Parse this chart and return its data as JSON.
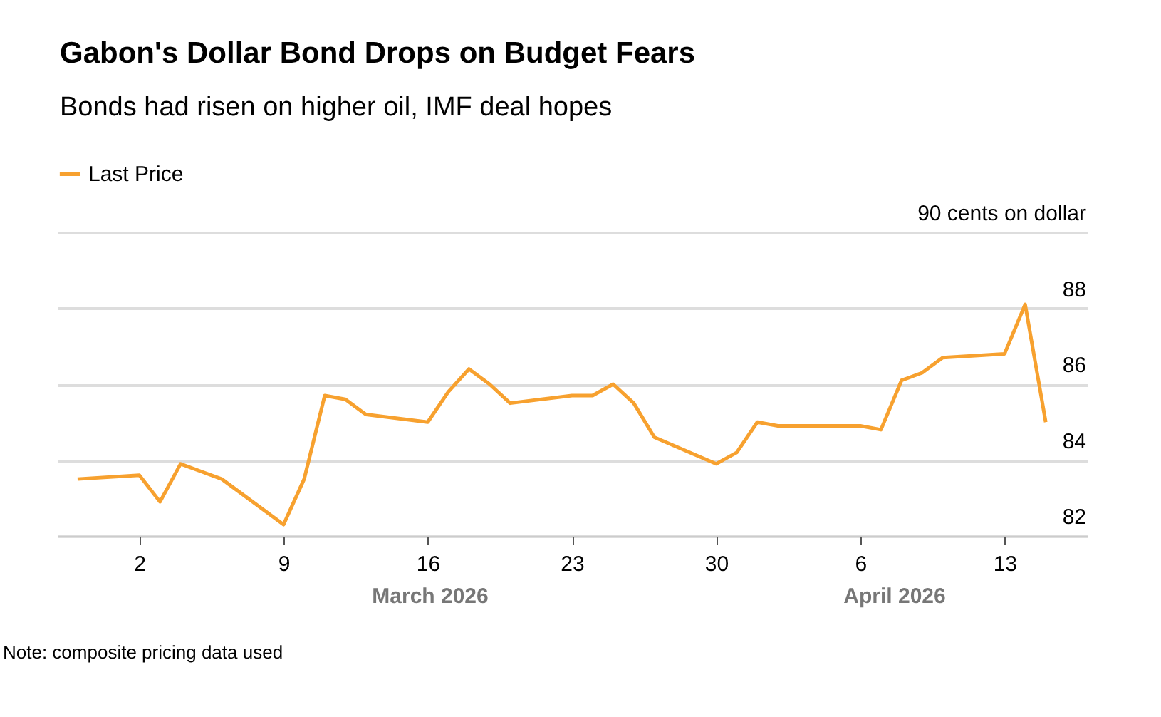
{
  "chart_data": {
    "type": "line",
    "title": "Gabon's Dollar Bond Drops on Budget Fears",
    "subtitle": "Bonds had risen on higher oil, IMF deal hopes",
    "x": [
      "2026-02-27",
      "2026-03-02",
      "2026-03-03",
      "2026-03-04",
      "2026-03-05",
      "2026-03-06",
      "2026-03-09",
      "2026-03-10",
      "2026-03-11",
      "2026-03-12",
      "2026-03-13",
      "2026-03-16",
      "2026-03-17",
      "2026-03-18",
      "2026-03-19",
      "2026-03-20",
      "2026-03-23",
      "2026-03-24",
      "2026-03-25",
      "2026-03-26",
      "2026-03-27",
      "2026-03-30",
      "2026-03-31",
      "2026-04-01",
      "2026-04-02",
      "2026-04-06",
      "2026-04-07",
      "2026-04-08",
      "2026-04-09",
      "2026-04-10",
      "2026-04-13",
      "2026-04-14",
      "2026-04-15"
    ],
    "series": [
      {
        "name": "Last Price",
        "color": "#f7a12f",
        "values": [
          83.5,
          83.6,
          82.9,
          83.9,
          83.7,
          83.5,
          82.3,
          83.5,
          85.7,
          85.6,
          85.2,
          85.0,
          85.8,
          86.4,
          86.0,
          85.5,
          85.7,
          85.7,
          86.0,
          85.5,
          84.6,
          83.9,
          84.2,
          85.0,
          84.9,
          84.9,
          84.8,
          86.1,
          86.3,
          86.7,
          86.8,
          88.1,
          85.0
        ]
      }
    ],
    "xlim": [
      "2026-02-26",
      "2026-04-17"
    ],
    "xticks": [
      {
        "value": "2026-03-02",
        "label": "2"
      },
      {
        "value": "2026-03-09",
        "label": "9"
      },
      {
        "value": "2026-03-16",
        "label": "16"
      },
      {
        "value": "2026-03-23",
        "label": "23"
      },
      {
        "value": "2026-03-30",
        "label": "30"
      },
      {
        "value": "2026-04-06",
        "label": "6"
      },
      {
        "value": "2026-04-13",
        "label": "13"
      }
    ],
    "ylim": [
      82,
      90
    ],
    "yticks": [
      82,
      84,
      86,
      88,
      {
        "value": 90,
        "label": "90 cents on dollar"
      }
    ],
    "grid": "y",
    "legend": "top left",
    "annotations": [
      "March 2026",
      "April 2026",
      "Note: composite pricing data used"
    ]
  }
}
